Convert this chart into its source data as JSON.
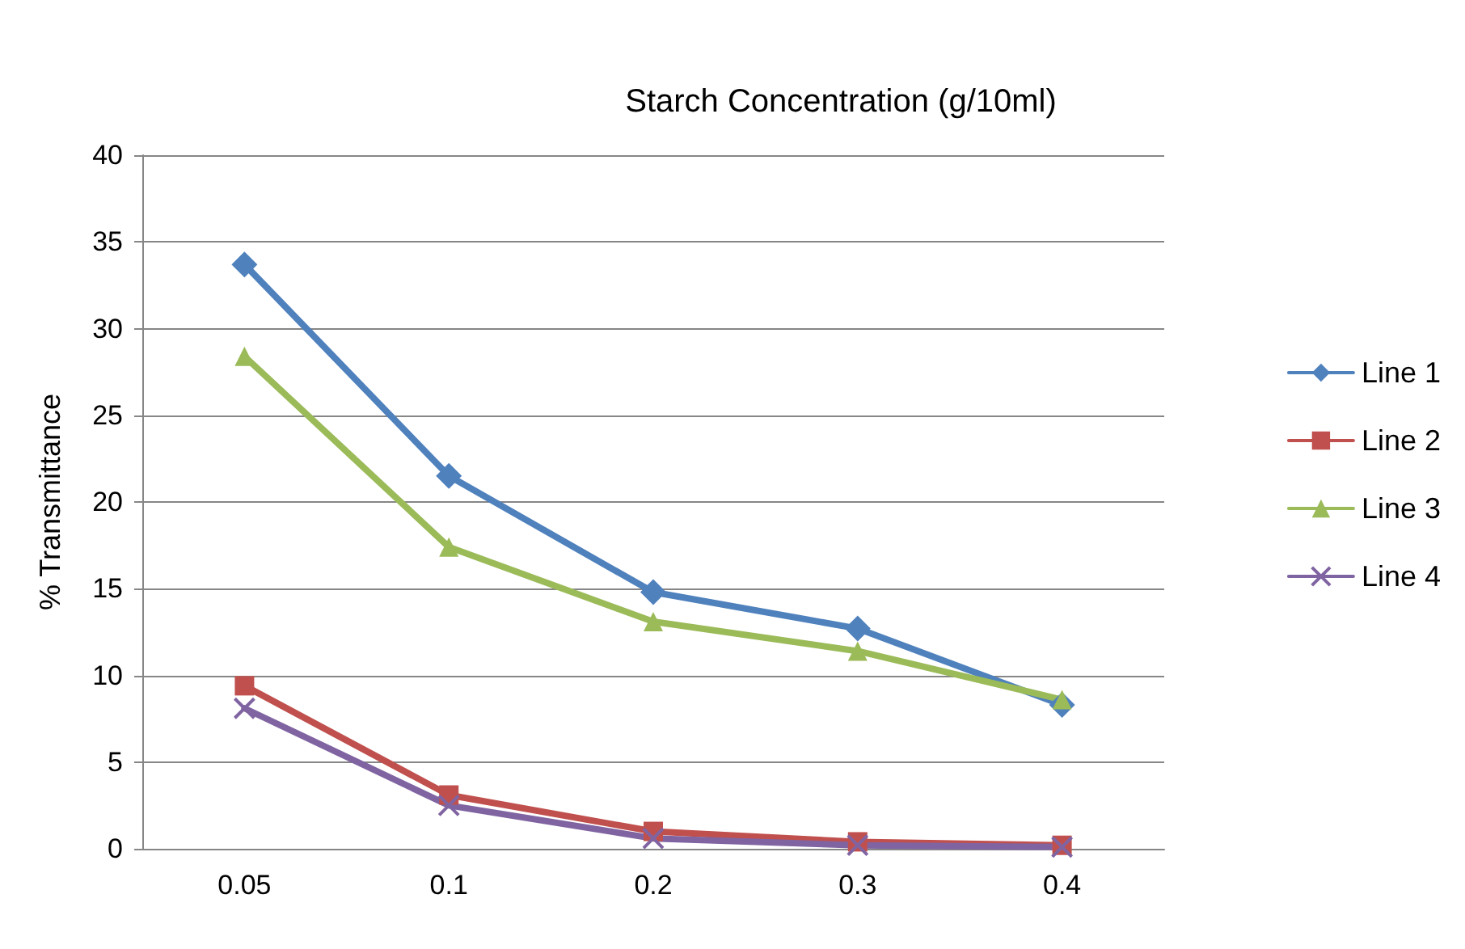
{
  "chart_data": {
    "type": "line",
    "title": "Starch Concentration (g/10ml)",
    "ylabel": "% Transmittance",
    "categories": [
      "0.05",
      "0.1",
      "0.2",
      "0.3",
      "0.4"
    ],
    "series": [
      {
        "name": "Line 1",
        "color": "#4f81bd",
        "marker": "diamond",
        "values": [
          33.7,
          21.5,
          14.8,
          12.7,
          8.3
        ]
      },
      {
        "name": "Line 2",
        "color": "#c0504d",
        "marker": "square",
        "values": [
          9.4,
          3.1,
          1.0,
          0.4,
          0.2
        ]
      },
      {
        "name": "Line 3",
        "color": "#9bbb59",
        "marker": "triangle",
        "values": [
          28.4,
          17.4,
          13.1,
          11.4,
          8.6
        ]
      },
      {
        "name": "Line 4",
        "color": "#8064a2",
        "marker": "cross",
        "values": [
          8.1,
          2.5,
          0.6,
          0.2,
          0.1
        ]
      }
    ],
    "ylim": [
      0,
      40
    ],
    "yticks": [
      0,
      5,
      10,
      15,
      20,
      25,
      30,
      35,
      40
    ],
    "grid": "y",
    "legend": "right"
  }
}
